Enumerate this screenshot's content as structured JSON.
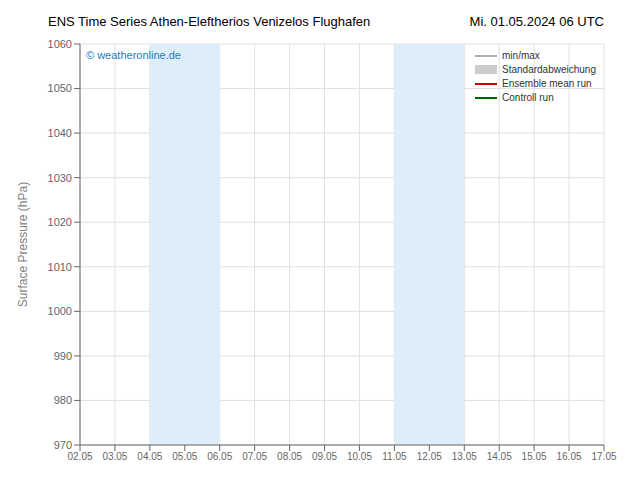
{
  "chart_data": {
    "type": "line",
    "title": "ENS Time Series Athen-Eleftherios Venizelos Flughafen",
    "subtitle": "Mi. 01.05.2024 06 UTC",
    "y_label": "Surface Pressure (hPa)",
    "categories": [
      "02.05",
      "03.05",
      "04.05",
      "05.05",
      "06.05",
      "07.05",
      "08.05",
      "09.05",
      "10.05",
      "11.05",
      "12.05",
      "13.05",
      "14.05",
      "15.05",
      "16.05",
      "17.05"
    ],
    "series": [
      {
        "name": "min/max",
        "type": "line",
        "color": "#b0b0b0",
        "values": [
          null,
          null,
          null,
          null,
          null,
          null,
          null,
          null,
          null,
          null,
          null,
          null,
          null,
          null,
          null,
          null
        ]
      },
      {
        "name": "Standardabweichung",
        "type": "area",
        "color": "#cccccc",
        "values": [
          null,
          null,
          null,
          null,
          null,
          null,
          null,
          null,
          null,
          null,
          null,
          null,
          null,
          null,
          null,
          null
        ]
      },
      {
        "name": "Ensemble mean run",
        "type": "line",
        "color": "#cc0000",
        "values": [
          null,
          null,
          null,
          null,
          null,
          null,
          null,
          null,
          null,
          null,
          null,
          null,
          null,
          null,
          null,
          null
        ]
      },
      {
        "name": "Controll run",
        "type": "line",
        "color": "#006600",
        "values": [
          null,
          null,
          null,
          null,
          null,
          null,
          null,
          null,
          null,
          null,
          null,
          null,
          null,
          null,
          null,
          null
        ]
      }
    ],
    "bands": [
      {
        "from": "04.05",
        "to": "06.05"
      },
      {
        "from": "11.05",
        "to": "13.05"
      }
    ],
    "band_color": "#ddeef8",
    "annotations": [
      {
        "text": "© weatheronline.de",
        "color": "#1a7dbf"
      }
    ],
    "ylim": [
      970,
      1060
    ],
    "yticks": [
      970,
      980,
      990,
      1000,
      1010,
      1020,
      1030,
      1040,
      1050,
      1060
    ],
    "grid": true,
    "legend": "upper right"
  }
}
